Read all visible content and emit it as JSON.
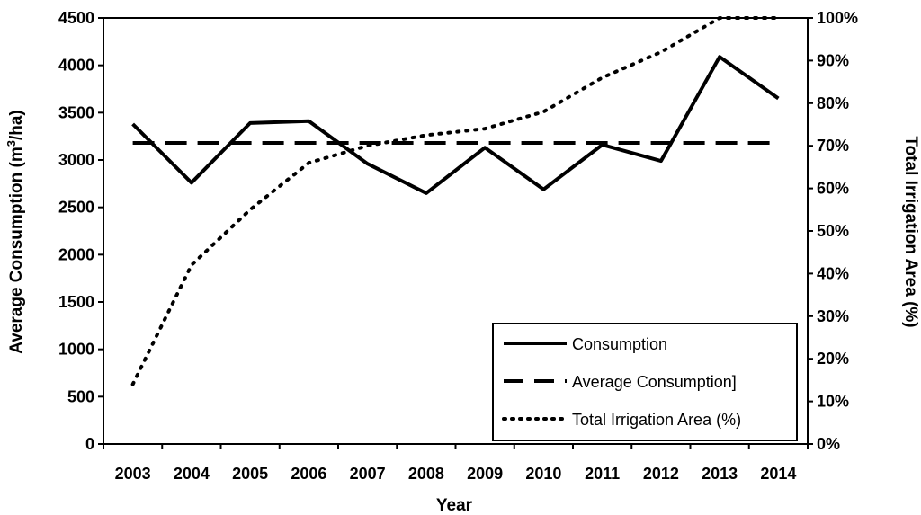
{
  "chart_data": {
    "type": "line",
    "title": "",
    "xlabel": "Year",
    "ylabel_left": {
      "main": "Average Consumption (m",
      "sup": "3",
      "tail": "/ha)"
    },
    "ylabel_right": "Total Irrigation Area (%)",
    "y_left_range": [
      0,
      4500
    ],
    "y_left_ticks": [
      0,
      500,
      1000,
      1500,
      2000,
      2500,
      3000,
      3500,
      4000,
      4500
    ],
    "y_right_range": [
      0,
      100
    ],
    "y_right_ticks": [
      "0%",
      "10%",
      "20%",
      "30%",
      "40%",
      "50%",
      "60%",
      "70%",
      "80%",
      "90%",
      "100%"
    ],
    "grid": false,
    "legend_position": "bottom-right",
    "categories": [
      "2003",
      "2004",
      "2005",
      "2006",
      "2007",
      "2008",
      "2009",
      "2010",
      "2011",
      "2012",
      "2013",
      "2014"
    ],
    "series": [
      {
        "name": "Consumption",
        "axis": "left",
        "style": "solid",
        "values": [
          3380,
          2760,
          3390,
          3410,
          2960,
          2650,
          3130,
          2690,
          3160,
          2990,
          4090,
          3650
        ]
      },
      {
        "name": "Average Consumption]",
        "axis": "left",
        "style": "dashed",
        "values": [
          3180,
          3180,
          3180,
          3180,
          3180,
          3180,
          3180,
          3180,
          3180,
          3180,
          3180,
          3180
        ]
      },
      {
        "name": "Total Irrigation Area (%)",
        "axis": "right",
        "style": "dotted",
        "values": [
          14,
          42,
          55,
          66,
          70,
          72.5,
          74,
          78,
          86,
          92,
          100,
          100
        ]
      }
    ]
  }
}
